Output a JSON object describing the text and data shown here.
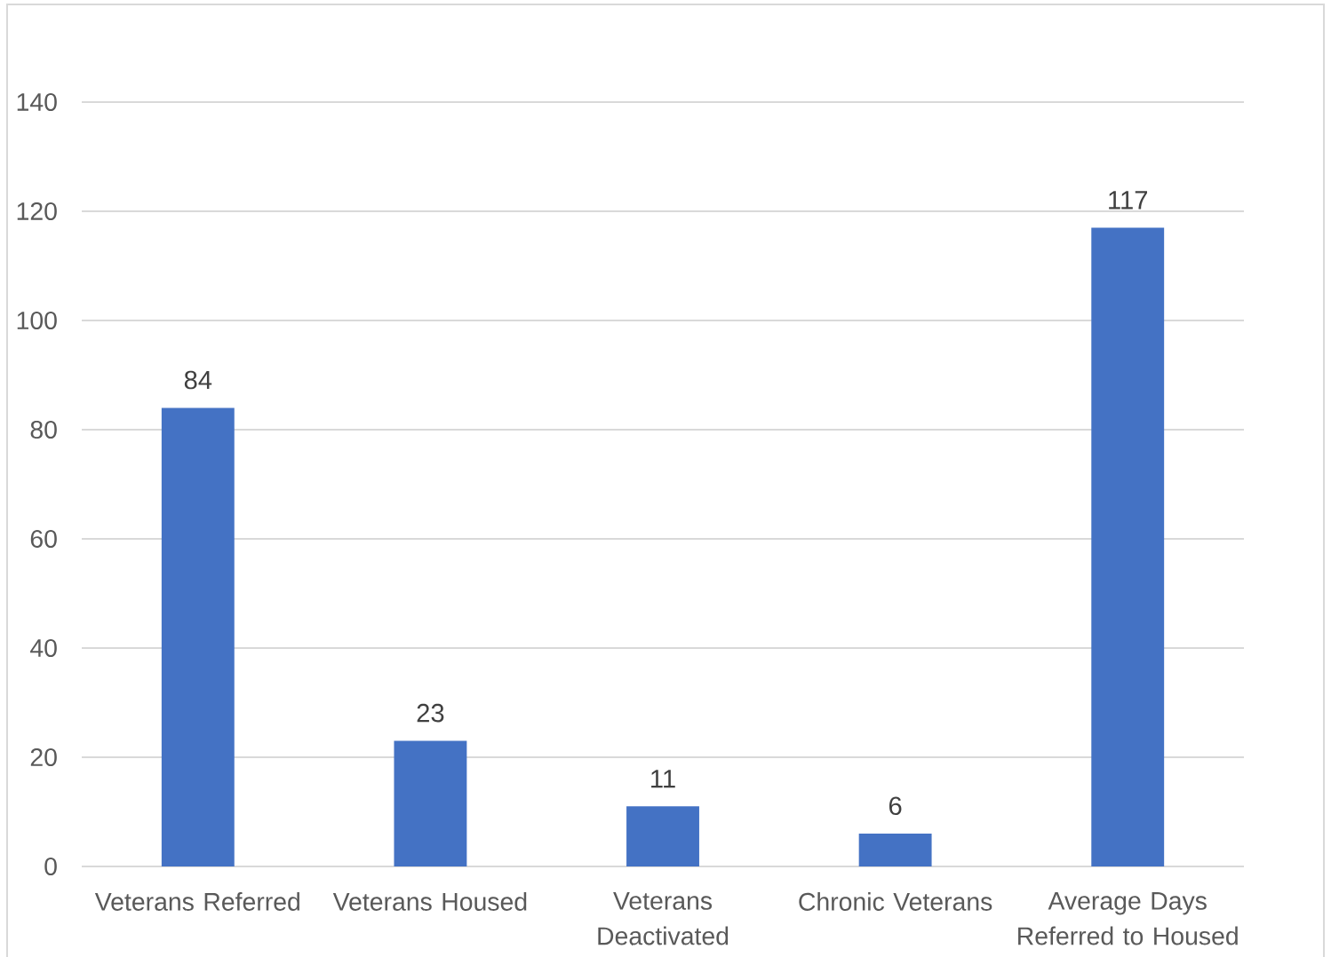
{
  "chart_data": {
    "type": "bar",
    "categories": [
      "Veterans Referred",
      "Veterans Housed",
      "Veterans Deactivated",
      "Chronic Veterans",
      "Average Days Referred to Housed"
    ],
    "values": [
      84,
      23,
      11,
      6,
      117
    ],
    "color": "#4472c4",
    "ylim": [
      0,
      140
    ],
    "yticks": [
      0,
      20,
      40,
      60,
      80,
      100,
      120,
      140
    ],
    "grid": "y",
    "data_labels": true
  }
}
